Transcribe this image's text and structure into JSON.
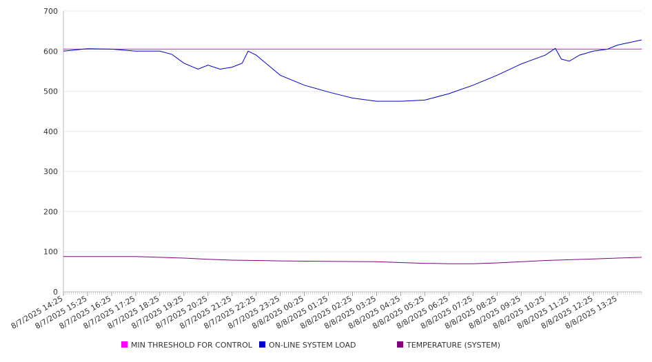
{
  "chart_data": {
    "type": "line",
    "title": "",
    "xlabel": "",
    "ylabel": "",
    "ylim": [
      0,
      700
    ],
    "yticks": [
      0,
      100,
      200,
      300,
      400,
      500,
      600,
      700
    ],
    "grid": "horizontal",
    "legend_position": "bottom",
    "x_range": [
      "8/7/2025 14:25",
      "8/8/2025 14:25"
    ],
    "x_tick_labels": [
      "8/7/2025 14:25",
      "8/7/2025 15:25",
      "8/7/2025 16:25",
      "8/7/2025 17:25",
      "8/7/2025 18:25",
      "8/7/2025 19:25",
      "8/7/2025 20:25",
      "8/7/2025 21:25",
      "8/7/2025 22:25",
      "8/7/2025 23:25",
      "8/8/2025 00:25",
      "8/8/2025 01:25",
      "8/8/2025 02:25",
      "8/8/2025 03:25",
      "8/8/2025 04:25",
      "8/8/2025 05:25",
      "8/8/2025 06:25",
      "8/8/2025 07:25",
      "8/8/2025 08:25",
      "8/8/2025 09:25",
      "8/8/2025 10:25",
      "8/8/2025 11:25",
      "8/8/2025 12:25",
      "8/8/2025 13:25"
    ],
    "series": [
      {
        "name": "MIN THRESHOLD FOR CONTROL",
        "color": "#ff00ff",
        "x": [
          "8/7/2025 14:25",
          "8/8/2025 14:25"
        ],
        "values": [
          605,
          605
        ]
      },
      {
        "name": "ON-LINE SYSTEM LOAD",
        "color": "#0000cc",
        "x": [
          "8/7/2025 14:25",
          "8/7/2025 15:25",
          "8/7/2025 16:25",
          "8/7/2025 17:25",
          "8/7/2025 18:25",
          "8/7/2025 18:55",
          "8/7/2025 19:25",
          "8/7/2025 20:00",
          "8/7/2025 20:25",
          "8/7/2025 20:55",
          "8/7/2025 21:25",
          "8/7/2025 21:50",
          "8/7/2025 22:05",
          "8/7/2025 22:25",
          "8/7/2025 23:25",
          "8/8/2025 00:25",
          "8/8/2025 01:25",
          "8/8/2025 02:25",
          "8/8/2025 03:25",
          "8/8/2025 04:25",
          "8/8/2025 05:25",
          "8/8/2025 06:25",
          "8/8/2025 07:25",
          "8/8/2025 08:25",
          "8/8/2025 09:25",
          "8/8/2025 10:25",
          "8/8/2025 10:50",
          "8/8/2025 11:05",
          "8/8/2025 11:25",
          "8/8/2025 11:50",
          "8/8/2025 12:25",
          "8/8/2025 13:00",
          "8/8/2025 13:25",
          "8/8/2025 14:25"
        ],
        "values": [
          600,
          606,
          605,
          600,
          600,
          592,
          570,
          555,
          565,
          555,
          560,
          570,
          600,
          590,
          540,
          515,
          498,
          483,
          475,
          475,
          478,
          494,
          515,
          540,
          568,
          590,
          607,
          580,
          575,
          590,
          600,
          605,
          615,
          628
        ]
      },
      {
        "name": "TEMPERATURE (SYSTEM)",
        "color": "#800080",
        "x": [
          "8/7/2025 14:25",
          "8/7/2025 17:25",
          "8/7/2025 18:25",
          "8/7/2025 19:25",
          "8/7/2025 20:25",
          "8/7/2025 21:25",
          "8/7/2025 22:25",
          "8/7/2025 23:25",
          "8/8/2025 01:25",
          "8/8/2025 03:25",
          "8/8/2025 04:25",
          "8/8/2025 05:25",
          "8/8/2025 06:25",
          "8/8/2025 07:25",
          "8/8/2025 08:25",
          "8/8/2025 09:25",
          "8/8/2025 10:25",
          "8/8/2025 11:25",
          "8/8/2025 12:25",
          "8/8/2025 13:25",
          "8/8/2025 14:25"
        ],
        "values": [
          88,
          88,
          86,
          84,
          81,
          79,
          78,
          77,
          76,
          75,
          73,
          71,
          70,
          70,
          72,
          75,
          78,
          80,
          82,
          84,
          86
        ]
      }
    ]
  }
}
